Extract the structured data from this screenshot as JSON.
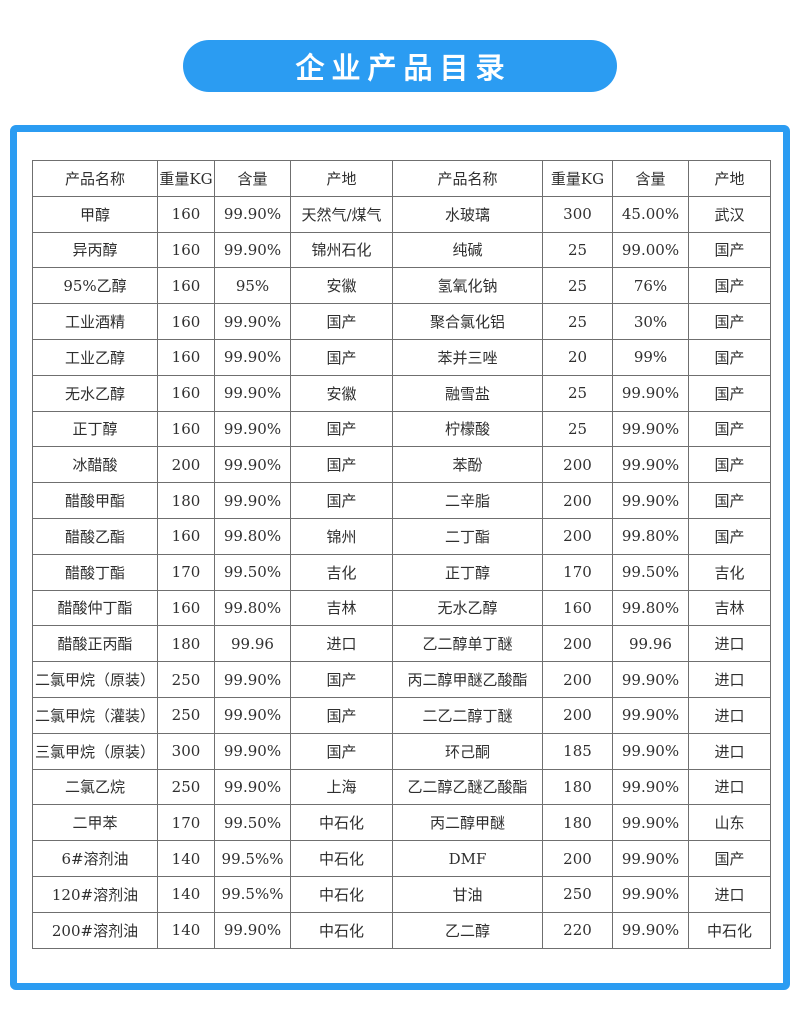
{
  "banner": {
    "title": "企业产品目录"
  },
  "colors": {
    "banner_bg": "#2b9cf2",
    "container_border": "#2b9cf2",
    "table_border": "#6f6f6f",
    "text": "#2f2f2f"
  },
  "table": {
    "headers": [
      "产品名称",
      "重量KG",
      "含量",
      "产地",
      "产品名称",
      "重量KG",
      "含量",
      "产地"
    ],
    "rows": [
      [
        "甲醇",
        "160",
        "99.90%",
        "天然气/煤气",
        "水玻璃",
        "300",
        "45.00%",
        "武汉"
      ],
      [
        "异丙醇",
        "160",
        "99.90%",
        "锦州石化",
        "纯碱",
        "25",
        "99.00%",
        "国产"
      ],
      [
        "95%乙醇",
        "160",
        "95%",
        "安徽",
        "氢氧化钠",
        "25",
        "76%",
        "国产"
      ],
      [
        "工业酒精",
        "160",
        "99.90%",
        "国产",
        "聚合氯化铝",
        "25",
        "30%",
        "国产"
      ],
      [
        "工业乙醇",
        "160",
        "99.90%",
        "国产",
        "苯并三唑",
        "20",
        "99%",
        "国产"
      ],
      [
        "无水乙醇",
        "160",
        "99.90%",
        "安徽",
        "融雪盐",
        "25",
        "99.90%",
        "国产"
      ],
      [
        "正丁醇",
        "160",
        "99.90%",
        "国产",
        "柠檬酸",
        "25",
        "99.90%",
        "国产"
      ],
      [
        "冰醋酸",
        "200",
        "99.90%",
        "国产",
        "苯酚",
        "200",
        "99.90%",
        "国产"
      ],
      [
        "醋酸甲酯",
        "180",
        "99.90%",
        "国产",
        "二辛脂",
        "200",
        "99.90%",
        "国产"
      ],
      [
        "醋酸乙酯",
        "160",
        "99.80%",
        "锦州",
        "二丁酯",
        "200",
        "99.80%",
        "国产"
      ],
      [
        "醋酸丁酯",
        "170",
        "99.50%",
        "吉化",
        "正丁醇",
        "170",
        "99.50%",
        "吉化"
      ],
      [
        "醋酸仲丁酯",
        "160",
        "99.80%",
        "吉林",
        "无水乙醇",
        "160",
        "99.80%",
        "吉林"
      ],
      [
        "醋酸正丙酯",
        "180",
        "99.96",
        "进口",
        "乙二醇单丁醚",
        "200",
        "99.96",
        "进口"
      ],
      [
        "二氯甲烷（原装）",
        "250",
        "99.90%",
        "国产",
        "丙二醇甲醚乙酸酯",
        "200",
        "99.90%",
        "进口"
      ],
      [
        "二氯甲烷（灌装）",
        "250",
        "99.90%",
        "国产",
        "二乙二醇丁醚",
        "200",
        "99.90%",
        "进口"
      ],
      [
        "三氯甲烷（原装）",
        "300",
        "99.90%",
        "国产",
        "环己酮",
        "185",
        "99.90%",
        "进口"
      ],
      [
        "二氯乙烷",
        "250",
        "99.90%",
        "上海",
        "乙二醇乙醚乙酸酯",
        "180",
        "99.90%",
        "进口"
      ],
      [
        "二甲苯",
        "170",
        "99.50%",
        "中石化",
        "丙二醇甲醚",
        "180",
        "99.90%",
        "山东"
      ],
      [
        "6#溶剂油",
        "140",
        "99.5%%",
        "中石化",
        "DMF",
        "200",
        "99.90%",
        "国产"
      ],
      [
        "120#溶剂油",
        "140",
        "99.5%%",
        "中石化",
        "甘油",
        "250",
        "99.90%",
        "进口"
      ],
      [
        "200#溶剂油",
        "140",
        "99.90%",
        "中石化",
        "乙二醇",
        "220",
        "99.90%",
        "中石化"
      ]
    ]
  }
}
